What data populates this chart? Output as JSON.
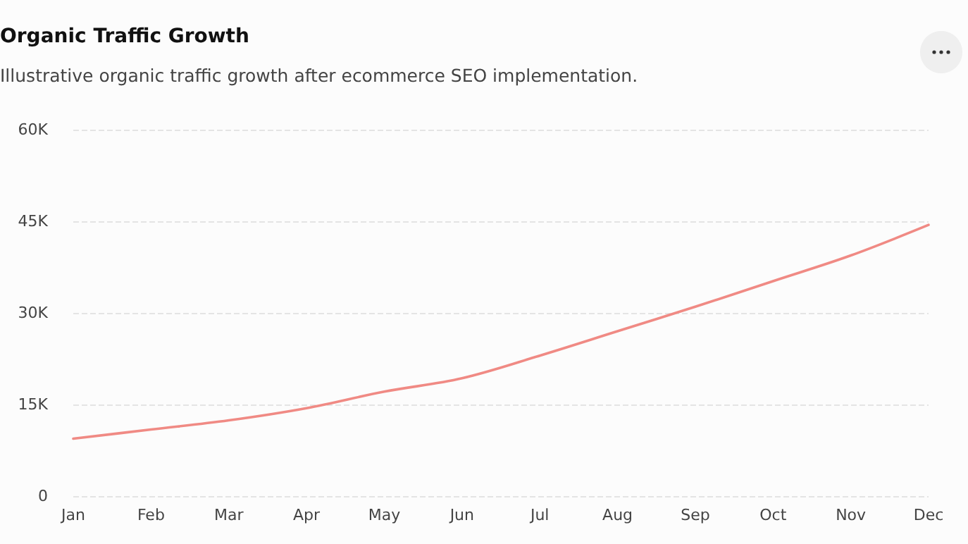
{
  "chart_data": {
    "type": "line",
    "title": "Organic Traffic Growth",
    "subtitle": "Illustrative organic traffic growth after ecommerce SEO implementation.",
    "categories": [
      "Jan",
      "Feb",
      "Mar",
      "Apr",
      "May",
      "Jun",
      "Jul",
      "Aug",
      "Sep",
      "Oct",
      "Nov",
      "Dec"
    ],
    "series": [
      {
        "color": "#f08a84",
        "values": [
          9400,
          10900,
          12400,
          14400,
          17100,
          19300,
          23000,
          27000,
          31000,
          35200,
          39400,
          44400
        ]
      }
    ],
    "ylim": [
      0,
      60000
    ],
    "yticks": [
      {
        "value": 0,
        "label": "0"
      },
      {
        "value": 15000,
        "label": "15K"
      },
      {
        "value": 30000,
        "label": "30K"
      },
      {
        "value": 45000,
        "label": "45K"
      },
      {
        "value": 60000,
        "label": "60K"
      }
    ],
    "grid": "y",
    "marker": "none",
    "line_style": "solid"
  }
}
